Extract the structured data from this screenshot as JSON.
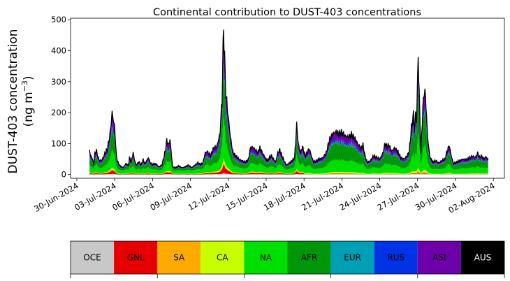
{
  "chart_data": {
    "type": "area",
    "stacked": true,
    "title": "Continental contribution to DUST-403 concentrations",
    "ylabel_line1": "DUST-403 concentration",
    "ylabel_line2_prefix": "(ng m",
    "ylabel_line2_sup": "−3",
    "ylabel_line2_suffix": ")",
    "xlabel": "",
    "ylim": [
      -12,
      505
    ],
    "xlim": [
      "2024-06-29T12:00",
      "2024-08-02T21:00"
    ],
    "yticks": [
      0,
      100,
      200,
      300,
      400,
      500
    ],
    "xticks": [
      "30-Jun-2024",
      "03-Jul-2024",
      "06-Jul-2024",
      "09-Jul-2024",
      "12-Jul-2024",
      "15-Jul-2024",
      "18-Jul-2024",
      "21-Jul-2024",
      "24-Jul-2024",
      "27-Jul-2024",
      "30-Jul-2024",
      "02-Aug-2024"
    ],
    "total_knots": [
      [
        "2024-07-01T00:00",
        80
      ],
      [
        "2024-07-01T02:00",
        60
      ],
      [
        "2024-07-01T05:00",
        55
      ],
      [
        "2024-07-01T08:00",
        30
      ],
      [
        "2024-07-01T10:00",
        65
      ],
      [
        "2024-07-01T13:00",
        78
      ],
      [
        "2024-07-01T16:00",
        58
      ],
      [
        "2024-07-01T19:00",
        45
      ],
      [
        "2024-07-02T00:00",
        48
      ],
      [
        "2024-07-02T06:00",
        70
      ],
      [
        "2024-07-02T10:00",
        82
      ],
      [
        "2024-07-02T15:00",
        130
      ],
      [
        "2024-07-02T19:00",
        200
      ],
      [
        "2024-07-03T00:00",
        150
      ],
      [
        "2024-07-03T03:00",
        62
      ],
      [
        "2024-07-03T06:00",
        40
      ],
      [
        "2024-07-03T10:00",
        28
      ],
      [
        "2024-07-03T16:00",
        22
      ],
      [
        "2024-07-03T21:00",
        35
      ],
      [
        "2024-07-04T02:00",
        30
      ],
      [
        "2024-07-04T04:00",
        55
      ],
      [
        "2024-07-04T07:00",
        40
      ],
      [
        "2024-07-04T11:00",
        70
      ],
      [
        "2024-07-04T14:00",
        45
      ],
      [
        "2024-07-04T17:00",
        30
      ],
      [
        "2024-07-04T22:00",
        42
      ],
      [
        "2024-07-05T02:00",
        30
      ],
      [
        "2024-07-05T06:00",
        48
      ],
      [
        "2024-07-05T09:00",
        35
      ],
      [
        "2024-07-05T13:00",
        45
      ],
      [
        "2024-07-05T16:00",
        55
      ],
      [
        "2024-07-05T19:00",
        40
      ],
      [
        "2024-07-05T23:00",
        32
      ],
      [
        "2024-07-06T06:00",
        35
      ],
      [
        "2024-07-06T12:00",
        25
      ],
      [
        "2024-07-06T18:00",
        32
      ],
      [
        "2024-07-07T00:00",
        75
      ],
      [
        "2024-07-07T03:00",
        110
      ],
      [
        "2024-07-07T06:00",
        95
      ],
      [
        "2024-07-07T09:00",
        112
      ],
      [
        "2024-07-07T11:00",
        80
      ],
      [
        "2024-07-07T14:00",
        25
      ],
      [
        "2024-07-07T20:00",
        22
      ],
      [
        "2024-07-08T02:00",
        28
      ],
      [
        "2024-07-08T08:00",
        22
      ],
      [
        "2024-07-08T14:00",
        25
      ],
      [
        "2024-07-08T20:00",
        30
      ],
      [
        "2024-07-09T02:00",
        22
      ],
      [
        "2024-07-09T08:00",
        30
      ],
      [
        "2024-07-09T14:00",
        38
      ],
      [
        "2024-07-09T20:00",
        32
      ],
      [
        "2024-07-10T00:00",
        40
      ],
      [
        "2024-07-10T04:00",
        70
      ],
      [
        "2024-07-10T08:00",
        75
      ],
      [
        "2024-07-10T14:00",
        60
      ],
      [
        "2024-07-10T20:00",
        85
      ],
      [
        "2024-07-11T02:00",
        90
      ],
      [
        "2024-07-11T08:00",
        130
      ],
      [
        "2024-07-11T12:00",
        240
      ],
      [
        "2024-07-11T15:00",
        480
      ],
      [
        "2024-07-11T19:00",
        270
      ],
      [
        "2024-07-11T23:00",
        200
      ],
      [
        "2024-07-12T04:00",
        120
      ],
      [
        "2024-07-12T09:00",
        70
      ],
      [
        "2024-07-12T14:00",
        60
      ],
      [
        "2024-07-12T20:00",
        50
      ],
      [
        "2024-07-13T02:00",
        45
      ],
      [
        "2024-07-13T08:00",
        40
      ],
      [
        "2024-07-13T14:00",
        48
      ],
      [
        "2024-07-13T18:00",
        85
      ],
      [
        "2024-07-13T22:00",
        90
      ],
      [
        "2024-07-14T03:00",
        80
      ],
      [
        "2024-07-14T08:00",
        70
      ],
      [
        "2024-07-14T12:00",
        85
      ],
      [
        "2024-07-14T17:00",
        70
      ],
      [
        "2024-07-14T22:00",
        55
      ],
      [
        "2024-07-15T02:00",
        45
      ],
      [
        "2024-07-15T06:00",
        55
      ],
      [
        "2024-07-15T10:00",
        60
      ],
      [
        "2024-07-15T14:00",
        50
      ],
      [
        "2024-07-15T18:00",
        40
      ],
      [
        "2024-07-15T22:00",
        70
      ],
      [
        "2024-07-16T02:00",
        80
      ],
      [
        "2024-07-16T06:00",
        60
      ],
      [
        "2024-07-16T10:00",
        45
      ],
      [
        "2024-07-16T14:00",
        30
      ],
      [
        "2024-07-16T20:00",
        38
      ],
      [
        "2024-07-17T02:00",
        45
      ],
      [
        "2024-07-17T06:00",
        55
      ],
      [
        "2024-07-17T10:00",
        160
      ],
      [
        "2024-07-17T13:00",
        100
      ],
      [
        "2024-07-17T17:00",
        70
      ],
      [
        "2024-07-17T21:00",
        90
      ],
      [
        "2024-07-18T02:00",
        60
      ],
      [
        "2024-07-18T06:00",
        70
      ],
      [
        "2024-07-18T10:00",
        85
      ],
      [
        "2024-07-18T14:00",
        60
      ],
      [
        "2024-07-18T18:00",
        40
      ],
      [
        "2024-07-19T00:00",
        45
      ],
      [
        "2024-07-19T06:00",
        50
      ],
      [
        "2024-07-19T12:00",
        55
      ],
      [
        "2024-07-19T18:00",
        70
      ],
      [
        "2024-07-20T00:00",
        110
      ],
      [
        "2024-07-20T06:00",
        130
      ],
      [
        "2024-07-20T12:00",
        138
      ],
      [
        "2024-07-20T18:00",
        132
      ],
      [
        "2024-07-21T00:00",
        135
      ],
      [
        "2024-07-21T06:00",
        125
      ],
      [
        "2024-07-21T12:00",
        120
      ],
      [
        "2024-07-21T18:00",
        128
      ],
      [
        "2024-07-22T00:00",
        118
      ],
      [
        "2024-07-22T06:00",
        100
      ],
      [
        "2024-07-22T12:00",
        85
      ],
      [
        "2024-07-22T16:00",
        95
      ],
      [
        "2024-07-22T20:00",
        60
      ],
      [
        "2024-07-23T00:00",
        40
      ],
      [
        "2024-07-23T06:00",
        45
      ],
      [
        "2024-07-23T12:00",
        60
      ],
      [
        "2024-07-23T18:00",
        55
      ],
      [
        "2024-07-24T00:00",
        50
      ],
      [
        "2024-07-24T06:00",
        70
      ],
      [
        "2024-07-24T10:00",
        100
      ],
      [
        "2024-07-24T14:00",
        90
      ],
      [
        "2024-07-24T18:00",
        95
      ],
      [
        "2024-07-24T22:00",
        75
      ],
      [
        "2024-07-25T04:00",
        85
      ],
      [
        "2024-07-25T10:00",
        75
      ],
      [
        "2024-07-25T16:00",
        55
      ],
      [
        "2024-07-25T22:00",
        50
      ],
      [
        "2024-07-26T04:00",
        60
      ],
      [
        "2024-07-26T08:00",
        75
      ],
      [
        "2024-07-26T12:00",
        150
      ],
      [
        "2024-07-26T16:00",
        195
      ],
      [
        "2024-07-26T18:00",
        140
      ],
      [
        "2024-07-26T20:00",
        200
      ],
      [
        "2024-07-26T22:00",
        170
      ],
      [
        "2024-07-27T01:00",
        385
      ],
      [
        "2024-07-27T04:00",
        200
      ],
      [
        "2024-07-27T06:00",
        70
      ],
      [
        "2024-07-27T09:00",
        180
      ],
      [
        "2024-07-27T12:00",
        268
      ],
      [
        "2024-07-27T15:00",
        255
      ],
      [
        "2024-07-27T19:00",
        120
      ],
      [
        "2024-07-27T23:00",
        60
      ],
      [
        "2024-07-28T04:00",
        40
      ],
      [
        "2024-07-28T10:00",
        45
      ],
      [
        "2024-07-28T16:00",
        38
      ],
      [
        "2024-07-28T22:00",
        45
      ],
      [
        "2024-07-29T04:00",
        50
      ],
      [
        "2024-07-29T08:00",
        75
      ],
      [
        "2024-07-29T12:00",
        95
      ],
      [
        "2024-07-29T16:00",
        60
      ],
      [
        "2024-07-29T20:00",
        35
      ],
      [
        "2024-07-30T02:00",
        40
      ],
      [
        "2024-07-30T08:00",
        45
      ],
      [
        "2024-07-30T14:00",
        50
      ],
      [
        "2024-07-30T20:00",
        48
      ],
      [
        "2024-07-31T02:00",
        52
      ],
      [
        "2024-07-31T08:00",
        60
      ],
      [
        "2024-07-31T14:00",
        55
      ],
      [
        "2024-07-31T18:00",
        70
      ],
      [
        "2024-07-31T22:00",
        55
      ],
      [
        "2024-08-01T02:00",
        60
      ],
      [
        "2024-08-01T06:00",
        50
      ],
      [
        "2024-08-01T10:00",
        58
      ],
      [
        "2024-08-01T14:00",
        48
      ]
    ],
    "series": [
      {
        "name": "OCE",
        "color": "#c8c8c8",
        "share": 0.01
      },
      {
        "name": "GNL",
        "color": "#e60000",
        "share": 0.06
      },
      {
        "name": "SA",
        "color": "#ffaa00",
        "share": 0.01
      },
      {
        "name": "CA",
        "color": "#c8ff00",
        "share": 0.03
      },
      {
        "name": "NA",
        "color": "#00e000",
        "share": 0.29
      },
      {
        "name": "AFR",
        "color": "#00960a",
        "share": 0.35
      },
      {
        "name": "EUR",
        "color": "#00a0b4",
        "share": 0.02
      },
      {
        "name": "RUS",
        "color": "#0032e6",
        "share": 0.05
      },
      {
        "name": "ASI",
        "color": "#6e00aa",
        "share": 0.17
      },
      {
        "name": "AUS",
        "color": "#000000",
        "share": 0.01
      }
    ],
    "legend_position": "colorbar-bottom"
  }
}
